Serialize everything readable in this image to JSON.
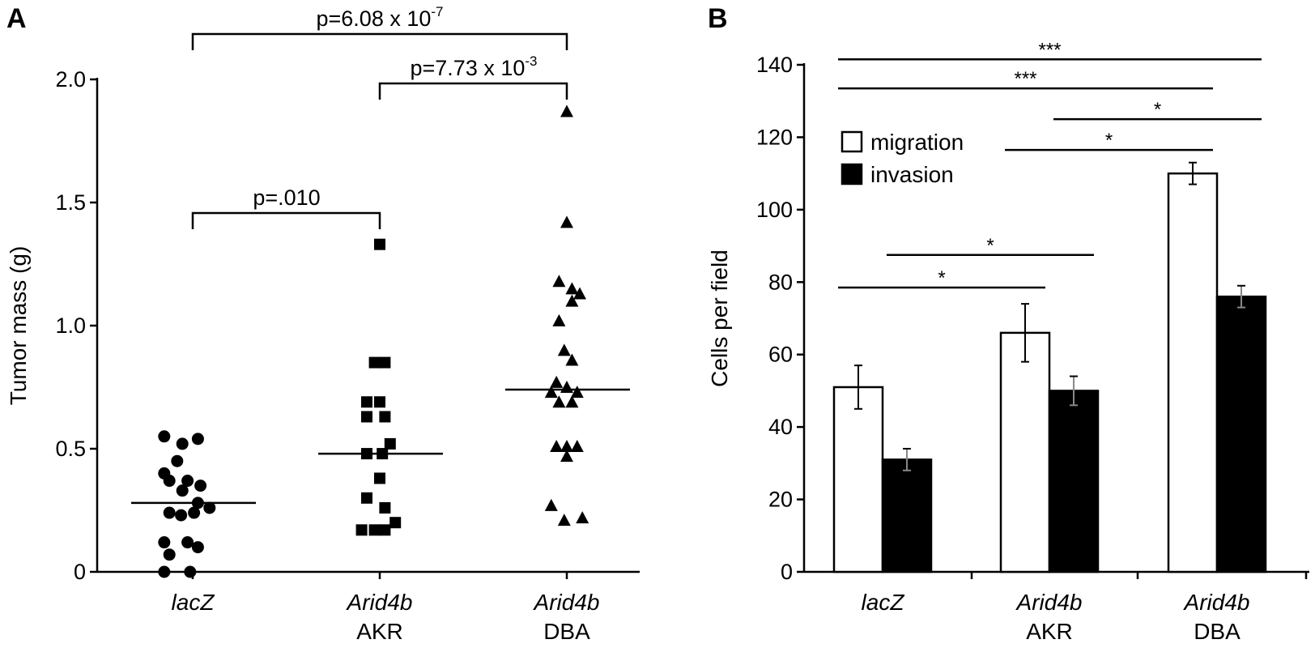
{
  "chart_data": [
    {
      "panel": "A",
      "type": "scatter",
      "ylabel": "Tumor mass (g)",
      "ylim": [
        0,
        2.0
      ],
      "yticks": [
        "0",
        "0.5",
        "1.0",
        "1.5",
        "2.0"
      ],
      "yticks_values": [
        0,
        0.5,
        1.0,
        1.5,
        2.0
      ],
      "categories": [
        {
          "line1": "lacZ",
          "line2": ""
        },
        {
          "line1": "Arid4b",
          "line2": "AKR"
        },
        {
          "line1": "Arid4b",
          "line2": "DBA"
        }
      ],
      "series": [
        {
          "marker": "circle",
          "points": [
            [
              -0.22,
              0.55
            ],
            [
              -0.08,
              0.52
            ],
            [
              0.04,
              0.54
            ],
            [
              -0.12,
              0.45
            ],
            [
              -0.22,
              0.4
            ],
            [
              -0.04,
              0.37
            ],
            [
              0.06,
              0.35
            ],
            [
              -0.18,
              0.37
            ],
            [
              -0.08,
              0.33
            ],
            [
              0.04,
              0.28
            ],
            [
              -0.18,
              0.24
            ],
            [
              -0.09,
              0.23
            ],
            [
              0.01,
              0.24
            ],
            [
              0.13,
              0.26
            ],
            [
              -0.22,
              0.12
            ],
            [
              -0.04,
              0.12
            ],
            [
              0.04,
              0.1
            ],
            [
              -0.18,
              0.07
            ],
            [
              -0.22,
              0.0
            ],
            [
              -0.02,
              0.0
            ]
          ],
          "median": 0.28
        },
        {
          "marker": "square",
          "points": [
            [
              0.0,
              1.33
            ],
            [
              -0.04,
              0.85
            ],
            [
              0.04,
              0.85
            ],
            [
              -0.1,
              0.69
            ],
            [
              0.0,
              0.69
            ],
            [
              -0.1,
              0.63
            ],
            [
              0.04,
              0.63
            ],
            [
              0.08,
              0.52
            ],
            [
              -0.1,
              0.48
            ],
            [
              0.02,
              0.48
            ],
            [
              0.0,
              0.38
            ],
            [
              -0.1,
              0.3
            ],
            [
              0.04,
              0.26
            ],
            [
              -0.14,
              0.17
            ],
            [
              -0.04,
              0.17
            ],
            [
              0.04,
              0.17
            ],
            [
              0.12,
              0.2
            ]
          ],
          "median": 0.48
        },
        {
          "marker": "triangle",
          "points": [
            [
              0.0,
              1.87
            ],
            [
              0.0,
              1.42
            ],
            [
              -0.06,
              1.18
            ],
            [
              0.04,
              1.15
            ],
            [
              0.1,
              1.13
            ],
            [
              0.04,
              1.1
            ],
            [
              -0.06,
              1.02
            ],
            [
              -0.02,
              0.9
            ],
            [
              0.04,
              0.86
            ],
            [
              -0.08,
              0.77
            ],
            [
              0.0,
              0.75
            ],
            [
              0.08,
              0.73
            ],
            [
              -0.12,
              0.73
            ],
            [
              -0.06,
              0.69
            ],
            [
              0.04,
              0.69
            ],
            [
              0.0,
              0.51
            ],
            [
              -0.08,
              0.51
            ],
            [
              0.08,
              0.51
            ],
            [
              0.0,
              0.47
            ],
            [
              -0.12,
              0.27
            ],
            [
              0.12,
              0.22
            ],
            [
              -0.02,
              0.21
            ]
          ],
          "median": 0.74
        }
      ],
      "comparisons": [
        {
          "from": 0,
          "to": 2,
          "text": "p=6.08 x 10",
          "exp": "-7"
        },
        {
          "from": 1,
          "to": 2,
          "text": "p=7.73 x 10",
          "exp": "-3"
        },
        {
          "from": 0,
          "to": 1,
          "text": "p=.010",
          "exp": ""
        }
      ]
    },
    {
      "panel": "B",
      "type": "bar",
      "ylabel": "Cells per field",
      "ylim": [
        0,
        140
      ],
      "yticks": [
        "0",
        "20",
        "40",
        "60",
        "80",
        "100",
        "120",
        "140"
      ],
      "yticks_values": [
        0,
        20,
        40,
        60,
        80,
        100,
        120,
        140
      ],
      "categories": [
        {
          "line1": "lacZ",
          "line2": ""
        },
        {
          "line1": "Arid4b",
          "line2": "AKR"
        },
        {
          "line1": "Arid4b",
          "line2": "DBA"
        }
      ],
      "series": [
        {
          "name": "migration",
          "color": "#ffffff",
          "values": [
            51,
            66,
            110
          ],
          "errors": [
            6,
            8,
            3
          ]
        },
        {
          "name": "invasion",
          "color": "#000000",
          "values": [
            31,
            50,
            76
          ],
          "errors": [
            3,
            4,
            3
          ]
        }
      ],
      "legend_position": "top-left",
      "significance": [
        {
          "from_bar": "g0s0",
          "to_bar": "g2s1",
          "y": 141.5,
          "label": "***"
        },
        {
          "from_bar": "g0s0",
          "to_bar": "g2s0",
          "y": 133.5,
          "label": "***"
        },
        {
          "from_bar": "g1s1",
          "to_bar": "g2s1",
          "y": 125,
          "label": "*"
        },
        {
          "from_bar": "g1s0",
          "to_bar": "g2s0",
          "y": 116.5,
          "label": "*"
        },
        {
          "from_bar": "g0s1",
          "to_bar": "g1s1",
          "y": 87.5,
          "label": "*"
        },
        {
          "from_bar": "g0s0",
          "to_bar": "g1s0",
          "y": 78.5,
          "label": "*"
        }
      ]
    }
  ]
}
